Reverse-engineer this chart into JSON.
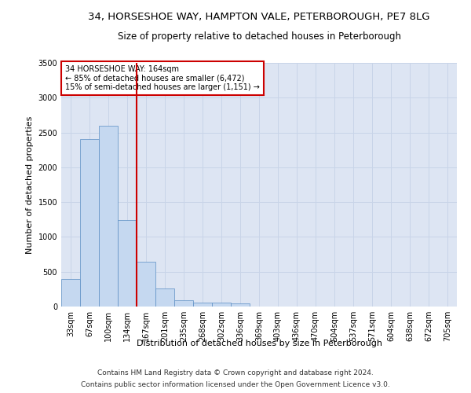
{
  "title_line1": "34, HORSESHOE WAY, HAMPTON VALE, PETERBOROUGH, PE7 8LG",
  "title_line2": "Size of property relative to detached houses in Peterborough",
  "xlabel": "Distribution of detached houses by size in Peterborough",
  "ylabel": "Number of detached properties",
  "categories": [
    "33sqm",
    "67sqm",
    "100sqm",
    "134sqm",
    "167sqm",
    "201sqm",
    "235sqm",
    "268sqm",
    "302sqm",
    "336sqm",
    "369sqm",
    "403sqm",
    "436sqm",
    "470sqm",
    "504sqm",
    "537sqm",
    "571sqm",
    "604sqm",
    "638sqm",
    "672sqm",
    "705sqm"
  ],
  "values": [
    390,
    2400,
    2600,
    1240,
    640,
    260,
    95,
    60,
    55,
    40,
    0,
    0,
    0,
    0,
    0,
    0,
    0,
    0,
    0,
    0,
    0
  ],
  "bar_color": "#c5d8f0",
  "bar_edge_color": "#5b8ec4",
  "red_line_x": 4.0,
  "annotation_text": "34 HORSESHOE WAY: 164sqm\n← 85% of detached houses are smaller (6,472)\n15% of semi-detached houses are larger (1,151) →",
  "annotation_box_color": "#ffffff",
  "annotation_box_edge": "#cc0000",
  "red_line_color": "#cc0000",
  "ylim": [
    0,
    3500
  ],
  "yticks": [
    0,
    500,
    1000,
    1500,
    2000,
    2500,
    3000,
    3500
  ],
  "grid_color": "#c8d4e8",
  "background_color": "#dde5f3",
  "footer_line1": "Contains HM Land Registry data © Crown copyright and database right 2024.",
  "footer_line2": "Contains public sector information licensed under the Open Government Licence v3.0.",
  "title_fontsize": 9.5,
  "subtitle_fontsize": 8.5,
  "tick_fontsize": 7,
  "ylabel_fontsize": 8,
  "xlabel_fontsize": 8,
  "annotation_fontsize": 7,
  "footer_fontsize": 6.5
}
